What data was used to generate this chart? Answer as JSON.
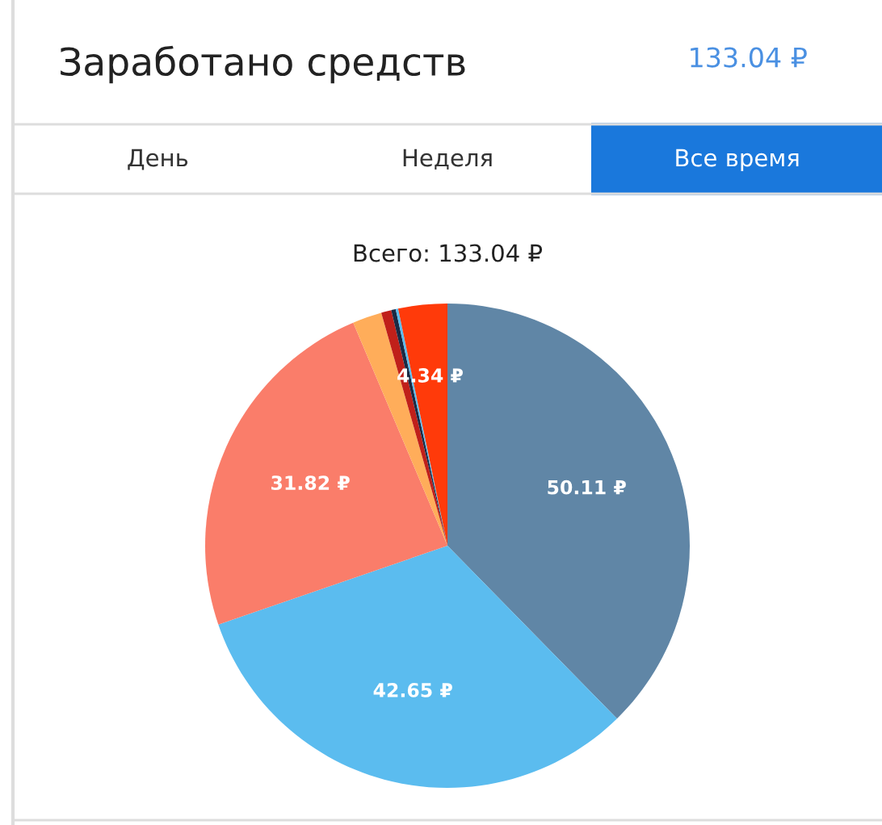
{
  "chart_data": {
    "type": "pie",
    "title": "Заработано средств",
    "subtitle": "Всего: 133.04 ₽",
    "annotations": [
      "133.04 ₽",
      "День",
      "Неделя",
      "Все время"
    ],
    "categories": [
      null,
      null,
      null,
      null,
      null,
      null,
      null,
      null
    ],
    "values": [
      50.11,
      42.65,
      31.82,
      2.6,
      0.9,
      0.4,
      0.22,
      4.34
    ],
    "value_labels": [
      "50.11 ₽",
      "42.65 ₽",
      "31.82 ₽",
      null,
      null,
      null,
      null,
      "4.34 ₽"
    ],
    "colors": [
      "#6086a6",
      "#5bbcef",
      "#fa7d6a",
      "#ffad5a",
      "#c0201a",
      "#1a2a44",
      "#5bbcef",
      "#ff3a0a"
    ],
    "legend": false
  }
}
